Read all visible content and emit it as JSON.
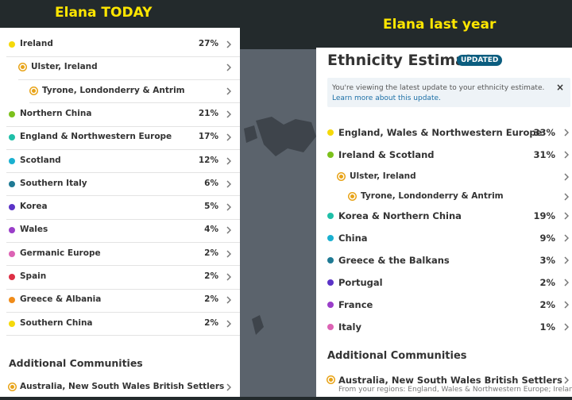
{
  "left": {
    "title": "Elana  TODAY",
    "regions": [
      {
        "name": "Ireland",
        "percent": "27%",
        "color": "#f5d90a",
        "subregions": [
          {
            "name": "Ulster, Ireland",
            "subregions": [
              {
                "name": "Tyrone, Londonderry & Antrim"
              }
            ]
          }
        ]
      },
      {
        "name": "Northern China",
        "percent": "21%",
        "color": "#7cc11c"
      },
      {
        "name": "England & Northwestern Europe",
        "percent": "17%",
        "color": "#1fbfa8"
      },
      {
        "name": "Scotland",
        "percent": "12%",
        "color": "#1ab0d0"
      },
      {
        "name": "Southern Italy",
        "percent": "6%",
        "color": "#1f7a94"
      },
      {
        "name": "Korea",
        "percent": "5%",
        "color": "#5b33c7"
      },
      {
        "name": "Wales",
        "percent": "4%",
        "color": "#9a3ec9"
      },
      {
        "name": "Germanic Europe",
        "percent": "2%",
        "color": "#dc63b4"
      },
      {
        "name": "Spain",
        "percent": "2%",
        "color": "#dd2f45"
      },
      {
        "name": "Greece & Albania",
        "percent": "2%",
        "color": "#f08c1a"
      },
      {
        "name": "Southern China",
        "percent": "2%",
        "color": "#f5d90a"
      }
    ],
    "communities_heading": "Additional Communities",
    "communities": [
      {
        "name": "Australia, New South Wales British Settlers"
      }
    ]
  },
  "right": {
    "title": "Elana last year",
    "heading": "Ethnicity Estimate",
    "badge": "UPDATED",
    "notice": "You're viewing the latest update to your ethnicity estimate.",
    "notice_link": "Learn more about this update.",
    "regions": [
      {
        "name": "England, Wales & Northwestern Europe",
        "percent": "33%",
        "color": "#f5d90a"
      },
      {
        "name": "Ireland & Scotland",
        "percent": "31%",
        "color": "#7cc11c",
        "subregions": [
          {
            "name": "Ulster, Ireland",
            "subregions": [
              {
                "name": "Tyrone, Londonderry & Antrim"
              }
            ]
          }
        ]
      },
      {
        "name": "Korea & Northern China",
        "percent": "19%",
        "color": "#1fbfa8"
      },
      {
        "name": "China",
        "percent": "9%",
        "color": "#1ab0d0"
      },
      {
        "name": "Greece & the Balkans",
        "percent": "3%",
        "color": "#1f7a94"
      },
      {
        "name": "Portugal",
        "percent": "2%",
        "color": "#5b33c7"
      },
      {
        "name": "France",
        "percent": "2%",
        "color": "#9a3ec9"
      },
      {
        "name": "Italy",
        "percent": "1%",
        "color": "#dc63b4"
      }
    ],
    "communities_heading": "Additional Communities",
    "communities": [
      {
        "name": "Australia, New South Wales British Settlers",
        "detail": "From your regions: England, Wales & Northwestern Europe; Ireland..."
      }
    ]
  }
}
